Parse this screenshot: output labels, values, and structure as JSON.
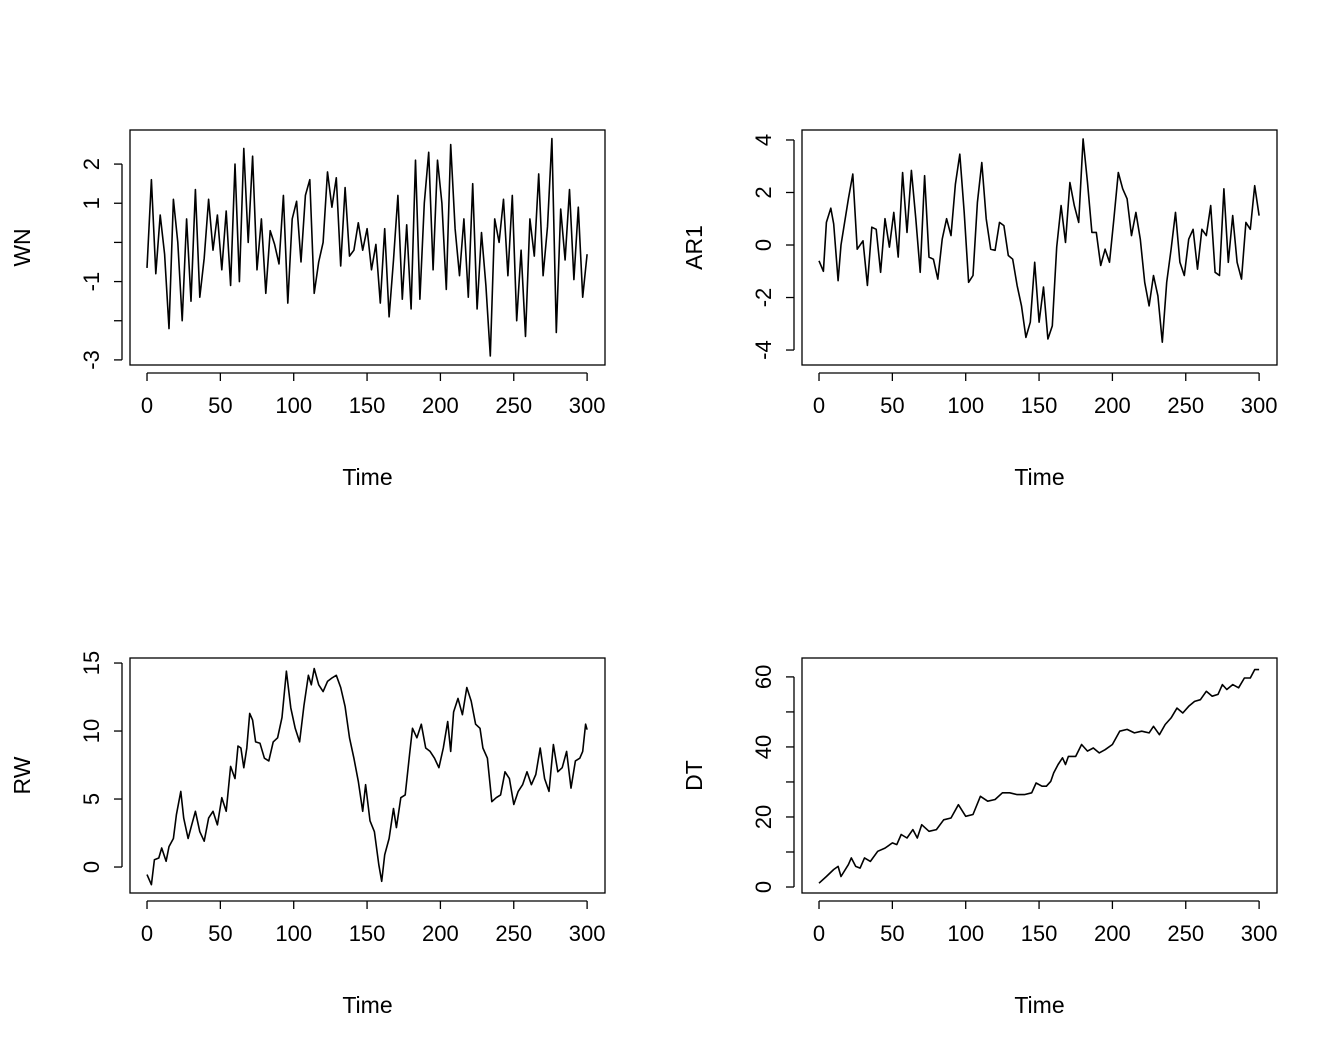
{
  "chart_data": [
    {
      "type": "line",
      "title": "",
      "xlabel": "Time",
      "ylabel": "WN",
      "xlim": [
        -11.6,
        312.2
      ],
      "ylim": [
        -3.13,
        2.87
      ],
      "xticks": [
        0,
        50,
        100,
        150,
        200,
        250,
        300
      ],
      "xtick_labels": [
        "0",
        "50",
        "100",
        "150",
        "200",
        "250",
        "300"
      ],
      "yticks": [
        -3,
        -2,
        -1,
        0,
        1,
        2
      ],
      "ytick_labels": [
        "-3",
        "",
        "-1",
        "",
        "1",
        "2"
      ],
      "grid": false,
      "x": [
        0,
        3,
        6,
        9,
        12,
        15,
        18,
        21,
        24,
        27,
        30,
        33,
        36,
        39,
        42,
        45,
        48,
        51,
        54,
        57,
        60,
        63,
        66,
        69,
        72,
        75,
        78,
        81,
        84,
        87,
        90,
        93,
        96,
        99,
        102,
        105,
        108,
        111,
        114,
        117,
        120,
        123,
        126,
        129,
        132,
        135,
        138,
        141,
        144,
        147,
        150,
        153,
        156,
        159,
        162,
        165,
        168,
        171,
        174,
        177,
        180,
        183,
        186,
        189,
        192,
        195,
        198,
        201,
        204,
        207,
        210,
        213,
        216,
        219,
        222,
        225,
        228,
        231,
        234,
        237,
        240,
        243,
        246,
        249,
        252,
        255,
        258,
        261,
        264,
        267,
        270,
        273,
        276,
        279,
        282,
        285,
        288,
        291,
        294,
        297,
        300
      ],
      "y": [
        -0.65,
        1.6,
        -0.8,
        0.7,
        -0.3,
        -2.2,
        1.1,
        0,
        -2.0,
        0.6,
        -1.5,
        1.35,
        -1.4,
        -0.4,
        1.1,
        -0.2,
        0.7,
        -0.7,
        0.8,
        -1.1,
        2.0,
        -1.0,
        2.4,
        0,
        2.2,
        -0.7,
        0.6,
        -1.3,
        0.3,
        -0.05,
        -0.55,
        1.2,
        -1.55,
        0.6,
        1.05,
        -0.5,
        1.2,
        1.6,
        -1.3,
        -0.5,
        0,
        1.8,
        0.9,
        1.65,
        -0.6,
        1.4,
        -0.35,
        -0.2,
        0.5,
        -0.2,
        0.35,
        -0.7,
        -0.05,
        -1.55,
        0.35,
        -1.9,
        -0.45,
        1.2,
        -1.45,
        0.45,
        -1.7,
        2.1,
        -1.45,
        1.0,
        2.3,
        -0.7,
        2.1,
        1.0,
        -1.2,
        2.5,
        0.35,
        -0.85,
        0.6,
        -1.4,
        1.5,
        -1.7,
        0.25,
        -1.1,
        -2.9,
        0.6,
        0,
        1.1,
        -0.85,
        1.2,
        -2.0,
        -0.2,
        -2.4,
        0.6,
        -0.35,
        1.75,
        -0.85,
        0.4,
        2.65,
        -2.3,
        0.85,
        -0.45,
        1.35,
        -0.95,
        0.9,
        -1.4,
        -0.3
      ]
    },
    {
      "type": "line",
      "title": "",
      "xlabel": "Time",
      "ylabel": "AR1",
      "xlim": [
        -11.6,
        312.2
      ],
      "ylim": [
        -4.57,
        4.38
      ],
      "xticks": [
        0,
        50,
        100,
        150,
        200,
        250,
        300
      ],
      "xtick_labels": [
        "0",
        "50",
        "100",
        "150",
        "200",
        "250",
        "300"
      ],
      "yticks": [
        -4,
        -2,
        0,
        2,
        4
      ],
      "ytick_labels": [
        "-4",
        "-2",
        "0",
        "2",
        "4"
      ],
      "grid": false,
      "x": [
        0,
        3,
        5,
        8,
        10,
        13,
        15,
        20,
        23,
        26,
        30,
        33,
        36,
        39,
        42,
        45,
        48,
        51,
        54,
        57,
        60,
        63,
        66,
        69,
        72,
        75,
        78,
        81,
        84,
        87,
        90,
        93,
        96,
        99,
        102,
        105,
        108,
        111,
        114,
        117,
        120,
        123,
        126,
        129,
        132,
        135,
        138,
        141,
        144,
        147,
        150,
        153,
        156,
        159,
        162,
        165,
        168,
        171,
        174,
        177,
        180,
        183,
        186,
        189,
        192,
        195,
        198,
        201,
        204,
        207,
        210,
        213,
        216,
        219,
        222,
        225,
        228,
        231,
        234,
        237,
        240,
        243,
        246,
        249,
        252,
        255,
        258,
        261,
        264,
        267,
        270,
        273,
        276,
        279,
        282,
        285,
        288,
        291,
        294,
        297,
        300
      ],
      "y": [
        -0.6,
        -1.0,
        0.86,
        1.4,
        0.8,
        -1.36,
        0,
        1.76,
        2.7,
        -0.16,
        0.16,
        -1.54,
        0.68,
        0.6,
        -1.04,
        1.0,
        -0.08,
        1.24,
        -0.46,
        2.76,
        0.48,
        2.84,
        1.0,
        -1.04,
        2.64,
        -0.46,
        -0.54,
        -1.3,
        0.22,
        1.0,
        0.36,
        2.32,
        3.46,
        1.24,
        -1.42,
        -1.16,
        1.62,
        3.14,
        1.0,
        -0.16,
        -0.2,
        0.86,
        0.74,
        -0.4,
        -0.54,
        -1.54,
        -2.32,
        -3.52,
        -2.94,
        -0.66,
        -2.94,
        -1.6,
        -3.58,
        -3.08,
        -0.08,
        1.5,
        0.1,
        2.38,
        1.5,
        0.86,
        4.04,
        2.38,
        0.48,
        0.48,
        -0.78,
        -0.16,
        -0.66,
        1.0,
        2.76,
        2.14,
        1.76,
        0.36,
        1.24,
        0.22,
        -1.42,
        -2.32,
        -1.16,
        -1.94,
        -3.7,
        -1.42,
        -0.16,
        1.24,
        -0.66,
        -1.16,
        0.22,
        0.6,
        -0.92,
        0.6,
        0.36,
        1.5,
        -1.04,
        -1.16,
        2.14,
        -0.66,
        1.12,
        -0.66,
        -1.3,
        0.86,
        0.6,
        2.26,
        1.12
      ]
    },
    {
      "type": "line",
      "title": "",
      "xlabel": "Time",
      "ylabel": "RW",
      "xlim": [
        -11.6,
        312.2
      ],
      "ylim": [
        -1.91,
        15.37
      ],
      "xticks": [
        0,
        50,
        100,
        150,
        200,
        250,
        300
      ],
      "xtick_labels": [
        "0",
        "50",
        "100",
        "150",
        "200",
        "250",
        "300"
      ],
      "yticks": [
        0,
        5,
        10,
        15
      ],
      "ytick_labels": [
        "0",
        "5",
        "10",
        "15"
      ],
      "grid": false,
      "x": [
        0,
        3,
        5,
        8,
        10,
        13,
        15,
        18,
        20,
        23,
        25,
        28,
        30,
        33,
        36,
        39,
        42,
        45,
        48,
        51,
        54,
        57,
        60,
        62,
        64,
        66,
        68,
        70,
        72,
        74,
        77,
        80,
        83,
        86,
        89,
        92,
        95,
        98,
        101,
        104,
        107,
        110,
        112,
        114,
        117,
        120,
        123,
        126,
        129,
        132,
        135,
        138,
        141,
        144,
        147,
        149,
        152,
        155,
        158,
        160,
        162,
        165,
        168,
        170,
        173,
        176,
        179,
        181,
        184,
        187,
        190,
        193,
        196,
        199,
        202,
        205,
        207,
        209,
        212,
        215,
        218,
        221,
        224,
        227,
        229,
        232,
        235,
        238,
        241,
        244,
        247,
        250,
        253,
        256,
        259,
        262,
        265,
        268,
        271,
        274,
        277,
        280,
        283,
        286,
        289,
        292,
        295,
        297,
        299,
        300
      ],
      "y": [
        -0.56,
        -1.3,
        0.54,
        0.66,
        1.4,
        0.42,
        1.5,
        2.1,
        3.85,
        5.56,
        3.6,
        2.1,
        2.9,
        4.1,
        2.6,
        1.9,
        3.6,
        4.1,
        3.1,
        5.1,
        4.1,
        7.4,
        6.5,
        8.9,
        8.75,
        7.3,
        8.75,
        11.3,
        10.8,
        9.2,
        9.1,
        8.0,
        7.8,
        9.2,
        9.5,
        11.0,
        14.4,
        11.7,
        10.2,
        9.2,
        11.9,
        14.1,
        13.4,
        14.6,
        13.4,
        12.9,
        13.65,
        13.9,
        14.1,
        13.2,
        11.8,
        9.5,
        8.0,
        6.3,
        4.1,
        6.05,
        3.4,
        2.6,
        0.17,
        -1.05,
        0.9,
        2.1,
        4.3,
        2.9,
        5.1,
        5.3,
        8.3,
        10.2,
        9.5,
        10.5,
        8.75,
        8.5,
        8.0,
        7.3,
        8.75,
        10.7,
        8.5,
        11.4,
        12.4,
        11.2,
        13.2,
        12.2,
        10.5,
        10.2,
        8.75,
        8.0,
        4.8,
        5.1,
        5.3,
        7.0,
        6.5,
        4.6,
        5.56,
        6.05,
        7.0,
        6.05,
        6.8,
        8.75,
        6.5,
        5.56,
        9.0,
        7.0,
        7.3,
        8.5,
        5.8,
        7.8,
        8.0,
        8.5,
        10.5,
        10.1
      ]
    },
    {
      "type": "line",
      "title": "",
      "xlabel": "Time",
      "ylabel": "DT",
      "xlim": [
        -11.6,
        312.2
      ],
      "ylim": [
        -1.71,
        65.4
      ],
      "xticks": [
        0,
        50,
        100,
        150,
        200,
        250,
        300
      ],
      "xtick_labels": [
        "0",
        "50",
        "100",
        "150",
        "200",
        "250",
        "300"
      ],
      "yticks": [
        0,
        10,
        20,
        30,
        40,
        50,
        60
      ],
      "ytick_labels": [
        "0",
        "",
        "20",
        "",
        "40",
        "",
        "60"
      ],
      "grid": false,
      "x": [
        0,
        5,
        10,
        13,
        15,
        20,
        22,
        25,
        28,
        31,
        35,
        40,
        45,
        50,
        53,
        56,
        60,
        64,
        67,
        70,
        75,
        80,
        85,
        90,
        95,
        100,
        105,
        110,
        115,
        120,
        125,
        130,
        135,
        140,
        145,
        148,
        152,
        155,
        158,
        160,
        163,
        166,
        168,
        170,
        175,
        179,
        183,
        187,
        191,
        195,
        200,
        205,
        210,
        215,
        220,
        225,
        228,
        232,
        236,
        240,
        244,
        248,
        252,
        256,
        260,
        264,
        268,
        272,
        275,
        278,
        282,
        286,
        290,
        294,
        297,
        300
      ],
      "y": [
        1.1,
        3.0,
        5.0,
        5.9,
        3.0,
        6.4,
        8.3,
        5.9,
        5.4,
        8.3,
        7.3,
        10.2,
        11.1,
        12.6,
        12.1,
        15.0,
        14.0,
        16.4,
        14.0,
        17.8,
        15.9,
        16.4,
        19.2,
        19.7,
        23.5,
        20.2,
        20.7,
        25.9,
        24.5,
        25.0,
        26.9,
        26.9,
        26.4,
        26.4,
        26.9,
        29.7,
        28.8,
        28.8,
        30.2,
        32.6,
        35.0,
        36.9,
        35.0,
        37.3,
        37.3,
        40.7,
        38.8,
        39.7,
        38.3,
        39.2,
        40.7,
        44.5,
        45.0,
        44.0,
        44.5,
        44.0,
        45.9,
        43.5,
        46.4,
        48.3,
        51.1,
        49.7,
        51.6,
        53.0,
        53.5,
        55.9,
        54.5,
        55.0,
        57.8,
        56.4,
        57.8,
        56.9,
        59.7,
        59.7,
        62.1,
        62.1
      ]
    }
  ]
}
